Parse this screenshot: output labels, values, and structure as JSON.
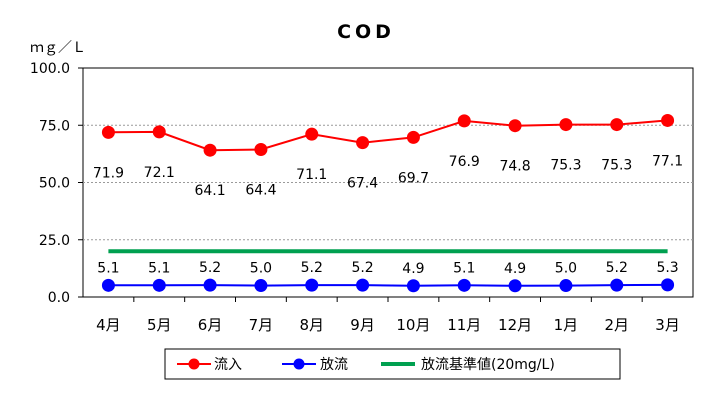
{
  "chart_data": {
    "type": "line",
    "title": "COD",
    "ylabel": "ｍｇ／Ｌ",
    "xlabel": "",
    "categories": [
      "4月",
      "5月",
      "6月",
      "7月",
      "8月",
      "9月",
      "10月",
      "11月",
      "12月",
      "1月",
      "2月",
      "3月"
    ],
    "ylim": [
      0,
      100
    ],
    "yticks": [
      "0.0",
      "25.0",
      "50.0",
      "75.0",
      "100.0"
    ],
    "grid": true,
    "legend_position": "bottom",
    "series": [
      {
        "name": "流入",
        "color": "#ff0000",
        "marker": "circle",
        "values": [
          71.9,
          72.1,
          64.1,
          64.4,
          71.1,
          67.4,
          69.7,
          76.9,
          74.8,
          75.3,
          75.3,
          77.1
        ],
        "labels": [
          "71.9",
          "72.1",
          "64.1",
          "64.4",
          "71.1",
          "67.4",
          "69.7",
          "76.9",
          "74.8",
          "75.3",
          "75.3",
          "77.1"
        ]
      },
      {
        "name": "放流",
        "color": "#0000ff",
        "marker": "circle",
        "values": [
          5.1,
          5.1,
          5.2,
          5.0,
          5.2,
          5.2,
          4.9,
          5.1,
          4.9,
          5.0,
          5.2,
          5.3
        ],
        "labels": [
          "5.1",
          "5.1",
          "5.2",
          "5.0",
          "5.2",
          "5.2",
          "4.9",
          "5.1",
          "4.9",
          "5.0",
          "5.2",
          "5.3"
        ]
      },
      {
        "name": "放流基準値(20mg/L)",
        "color": "#00a050",
        "marker": "none",
        "values": [
          20,
          20,
          20,
          20,
          20,
          20,
          20,
          20,
          20,
          20,
          20,
          20
        ]
      }
    ]
  }
}
